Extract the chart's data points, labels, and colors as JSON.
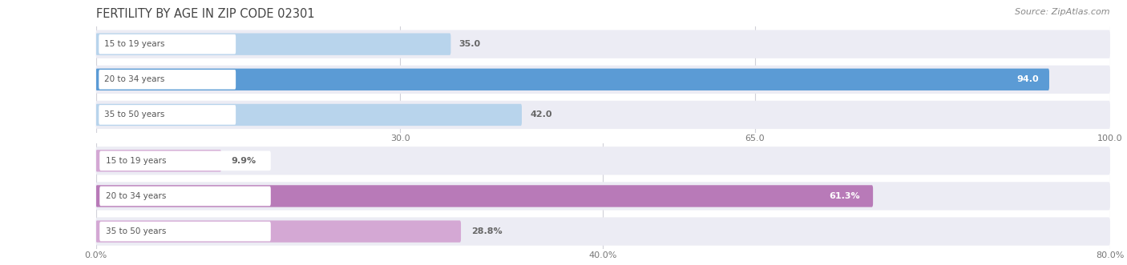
{
  "title": "FERTILITY BY AGE IN ZIP CODE 02301",
  "source": "Source: ZipAtlas.com",
  "top_section": {
    "categories": [
      "15 to 19 years",
      "20 to 34 years",
      "35 to 50 years"
    ],
    "values": [
      35.0,
      94.0,
      42.0
    ],
    "value_labels": [
      "35.0",
      "94.0",
      "42.0"
    ],
    "xlim": [
      0,
      100
    ],
    "xticks": [
      0,
      30.0,
      65.0,
      100.0
    ],
    "xtick_labels": [
      "",
      "30.0",
      "65.0",
      "100.0"
    ],
    "bar_color_light": "#b8d4ec",
    "bar_color_dark": "#5b9bd5",
    "inside_threshold": 60
  },
  "bottom_section": {
    "categories": [
      "15 to 19 years",
      "20 to 34 years",
      "35 to 50 years"
    ],
    "values": [
      9.9,
      61.3,
      28.8
    ],
    "value_labels": [
      "9.9%",
      "61.3%",
      "28.8%"
    ],
    "xlim": [
      0,
      80
    ],
    "xticks": [
      0.0,
      40.0,
      80.0
    ],
    "xtick_labels": [
      "0.0%",
      "40.0%",
      "80.0%"
    ],
    "bar_color_light": "#d4a8d4",
    "bar_color_dark": "#b87ab8",
    "inside_threshold": 50
  },
  "title_color": "#444444",
  "source_color": "#888888",
  "bar_bg_color": "#ececf4",
  "bar_row_bg": "#f7f7fb",
  "label_box_color": "#ffffff",
  "label_text_color": "#555555",
  "value_inside_color": "#ffffff",
  "value_outside_color": "#666666",
  "grid_color": "#d0d0d8"
}
